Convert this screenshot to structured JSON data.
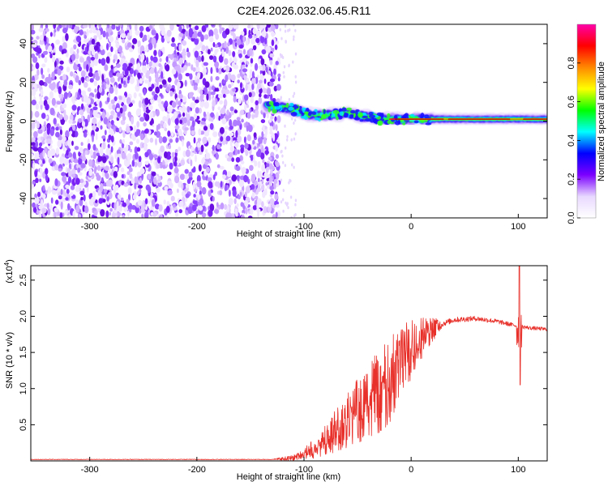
{
  "title": "C2E4.2026.032.06.45.R11",
  "chart_data": [
    {
      "type": "heatmap",
      "xlabel": "Height of straight line (km)",
      "ylabel": "Frequency (Hz)",
      "xlim": [
        -355,
        127
      ],
      "ylim": [
        -50,
        50
      ],
      "xticks": [
        -300,
        -200,
        -100,
        0,
        100
      ],
      "yticks": [
        -40,
        -20,
        0,
        20,
        40
      ],
      "xtick_labels": [
        "-300",
        "-200",
        "-100",
        "0",
        "100"
      ],
      "ytick_labels": [
        "-40",
        "-20",
        "0",
        "20",
        "40"
      ],
      "noise_region_x": [
        -355,
        -123
      ],
      "signal_ridge": [
        {
          "x": -135,
          "f": 8
        },
        {
          "x": -120,
          "f": 7
        },
        {
          "x": -110,
          "f": 6
        },
        {
          "x": -100,
          "f": 4
        },
        {
          "x": -90,
          "f": 3
        },
        {
          "x": -80,
          "f": 3
        },
        {
          "x": -60,
          "f": 4
        },
        {
          "x": -40,
          "f": 2
        },
        {
          "x": -20,
          "f": 1
        },
        {
          "x": 0,
          "f": 1
        },
        {
          "x": 40,
          "f": 1
        },
        {
          "x": 80,
          "f": 1
        },
        {
          "x": 100,
          "f": 1
        },
        {
          "x": 127,
          "f": 1
        }
      ],
      "colorbar": {
        "label": "Normalized spectral amplitude",
        "range": [
          0,
          1
        ],
        "ticks": [
          0.0,
          0.2,
          0.4,
          0.6,
          0.8
        ],
        "tick_labels": [
          "0.0",
          "0.2",
          "0.4",
          "0.6",
          "0.8"
        ],
        "colors": [
          "#ffffff",
          "#e8d8ff",
          "#7b00ff",
          "#0000ff",
          "#00ffff",
          "#00ff00",
          "#ffff00",
          "#ff8800",
          "#ff0000",
          "#ff00aa"
        ]
      }
    },
    {
      "type": "line",
      "xlabel": "Height of straight line (km)",
      "ylabel": "SNR (10 * v/v)",
      "multiplier_label": "(x10",
      "multiplier_exp": "4",
      "multiplier_close": ")",
      "xlim": [
        -355,
        127
      ],
      "ylim": [
        0,
        2.7
      ],
      "xticks": [
        -300,
        -200,
        -100,
        0,
        100
      ],
      "yticks": [
        0.5,
        1.0,
        1.5,
        2.0,
        2.5
      ],
      "xtick_labels": [
        "-300",
        "-200",
        "-100",
        "0",
        "100"
      ],
      "ytick_labels": [
        "0.5",
        "1.0",
        "1.5",
        "2.0",
        "2.5"
      ],
      "color": "#e8302a",
      "trend": [
        {
          "x": -355,
          "y": 0.02
        },
        {
          "x": -130,
          "y": 0.02
        },
        {
          "x": -110,
          "y": 0.04
        },
        {
          "x": -100,
          "y": 0.1
        },
        {
          "x": -90,
          "y": 0.18
        },
        {
          "x": -80,
          "y": 0.28
        },
        {
          "x": -70,
          "y": 0.42
        },
        {
          "x": -60,
          "y": 0.55
        },
        {
          "x": -50,
          "y": 0.7
        },
        {
          "x": -40,
          "y": 0.82
        },
        {
          "x": -30,
          "y": 0.95
        },
        {
          "x": -20,
          "y": 1.1
        },
        {
          "x": -10,
          "y": 1.35
        },
        {
          "x": 0,
          "y": 1.55
        },
        {
          "x": 10,
          "y": 1.72
        },
        {
          "x": 20,
          "y": 1.82
        },
        {
          "x": 30,
          "y": 1.9
        },
        {
          "x": 40,
          "y": 1.95
        },
        {
          "x": 60,
          "y": 1.97
        },
        {
          "x": 80,
          "y": 1.93
        },
        {
          "x": 95,
          "y": 1.88
        },
        {
          "x": 110,
          "y": 1.84
        },
        {
          "x": 127,
          "y": 1.82
        }
      ],
      "noise_amp": [
        {
          "x": -355,
          "a": 0.004
        },
        {
          "x": -130,
          "a": 0.004
        },
        {
          "x": -100,
          "a": 0.06
        },
        {
          "x": -70,
          "a": 0.25
        },
        {
          "x": -40,
          "a": 0.45
        },
        {
          "x": -20,
          "a": 0.5
        },
        {
          "x": 0,
          "a": 0.35
        },
        {
          "x": 20,
          "a": 0.15
        },
        {
          "x": 30,
          "a": 0.04
        },
        {
          "x": 127,
          "a": 0.025
        }
      ],
      "spike": {
        "x": 101,
        "ymax": 2.7,
        "ymin": 1.05
      }
    }
  ]
}
